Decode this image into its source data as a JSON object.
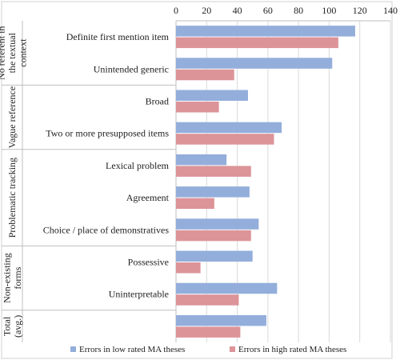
{
  "chart_data": {
    "type": "bar",
    "orientation": "horizontal",
    "axis_position": "top",
    "grid": true,
    "legend_position": "bottom",
    "xlim": [
      0,
      140
    ],
    "ticks": [
      0,
      20,
      40,
      60,
      80,
      100,
      120,
      140
    ],
    "tick_labels": [
      "0",
      "20",
      "40",
      "60",
      "80",
      "100",
      "120",
      "140"
    ],
    "groups": [
      {
        "label": "No referent in the textual context",
        "label_lines": [
          "No referent in",
          "the textual",
          "context"
        ],
        "categories": 2
      },
      {
        "label": "Vague reference",
        "label_lines": [
          "Vague reference"
        ],
        "categories": 2
      },
      {
        "label": "Problematic tracking",
        "label_lines": [
          "Problematic tracking"
        ],
        "categories": 3
      },
      {
        "label": "Non-existing forms",
        "label_lines": [
          "Non-existing",
          "forms"
        ],
        "categories": 2
      },
      {
        "label": "Total (avg.)",
        "label_lines": [
          "Total",
          "(avg.)"
        ],
        "categories": 1
      }
    ],
    "categories": [
      "Definite first mention item",
      "Unintended generic",
      "Broad",
      "Two or more presupposed items",
      "Lexical problem",
      "Agreement",
      "Choice / place of demonstratives",
      "Possessive",
      "Uninterpretable",
      ""
    ],
    "series": [
      {
        "name": "Errors in low rated MA theses",
        "color": "#93aedb",
        "values": [
          117,
          102,
          47,
          69,
          33,
          48,
          54,
          50,
          66,
          59
        ]
      },
      {
        "name": "Errors in high rated MA theses",
        "color": "#dc9499",
        "values": [
          106,
          38,
          28,
          64,
          49,
          25,
          49,
          16,
          41,
          42
        ]
      }
    ]
  }
}
